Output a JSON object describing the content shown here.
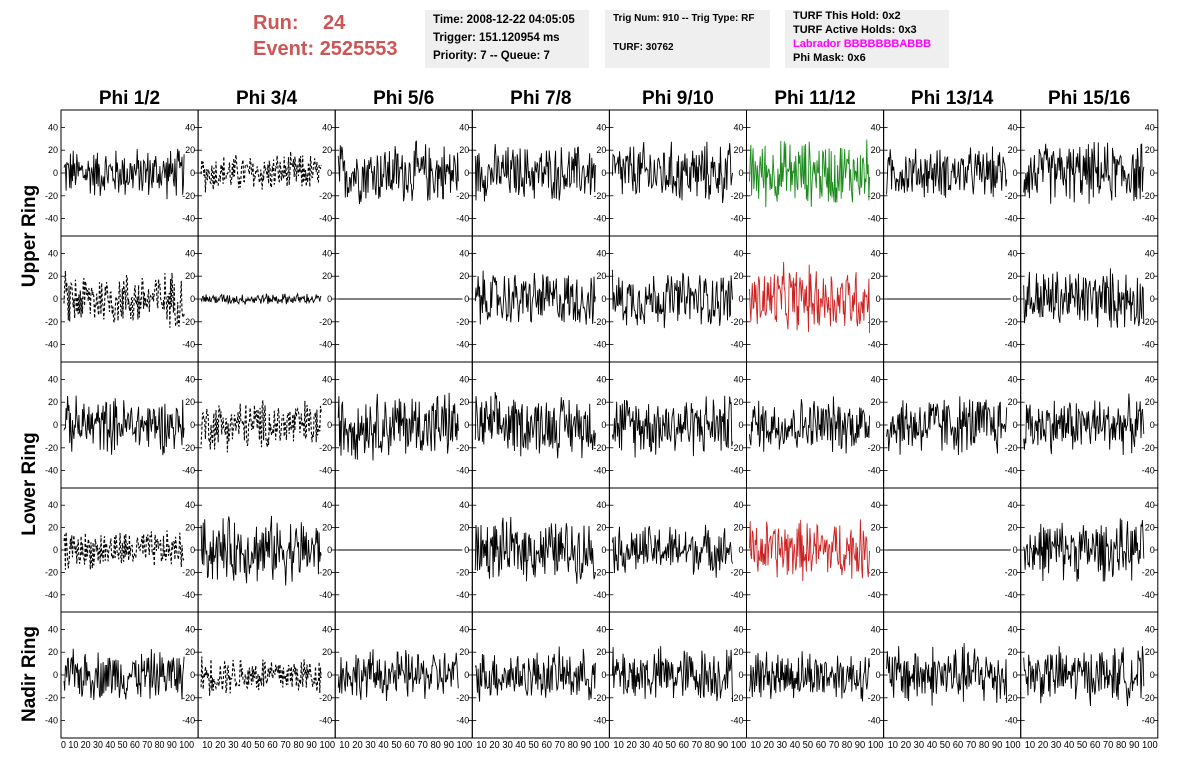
{
  "header": {
    "run_label": "Run:",
    "run_value": "24",
    "event_label": "Event:",
    "event_value": "2525553",
    "time": "Time: 2008-12-22 04:05:05",
    "trigger": "Trigger: 151.120954 ms",
    "priority": "Priority: 7 -- Queue: 7",
    "trig": "Trig Num: 910 -- Trig Type: RF",
    "turf": "TURF: 30762",
    "turf_hold": "TURF This Hold: 0x2",
    "turf_active": "TURF Active Holds: 0x3",
    "labrador": "Labrador BBBBBBBABBB",
    "phi_mask": "Phi Mask: 0x6"
  },
  "columns": [
    "Phi 1/2",
    "Phi 3/4",
    "Phi 5/6",
    "Phi 7/8",
    "Phi 9/10",
    "Phi 11/12",
    "Phi 13/14",
    "Phi 15/16"
  ],
  "row_labels": [
    "Upper Ring",
    "Lower Ring",
    "Nadir Ring"
  ],
  "y_ticks": [
    "40",
    "20",
    "0",
    "-20",
    "-40"
  ],
  "x_ticks_left": "0 10 20 30 40 50 60 70 80 90 100",
  "x_ticks": "10 20 30 40 50 60 70 80 90 100",
  "colors": {
    "run": "#cc5555",
    "labrador": "#ff00ff",
    "green": "#1a8a1a",
    "red": "#cc2222",
    "trace": "#000000"
  },
  "chart_data": {
    "type": "line",
    "title": "",
    "xlabel": "",
    "ylabel": "",
    "xlim": [
      0,
      100
    ],
    "ylim": [
      -50,
      50
    ],
    "panels": [
      [
        "solid",
        "dashed",
        "solid",
        "solid",
        "solid",
        "green",
        "solid",
        "solid"
      ],
      [
        "dashed",
        "small",
        "flat",
        "solid",
        "solid",
        "red",
        "flat",
        "solid"
      ],
      [
        "solid",
        "dashed",
        "solid",
        "solid",
        "solid",
        "solid",
        "solid",
        "solid"
      ],
      [
        "dashed",
        "solid",
        "flat",
        "solid",
        "solid",
        "red",
        "flat",
        "solid"
      ],
      [
        "solid",
        "dashed",
        "solid",
        "solid",
        "solid",
        "solid",
        "solid",
        "solid"
      ]
    ],
    "amplitudes": [
      [
        18,
        14,
        22,
        20,
        22,
        24,
        18,
        22
      ],
      [
        20,
        4,
        0,
        20,
        20,
        24,
        0,
        22
      ],
      [
        20,
        18,
        24,
        22,
        22,
        20,
        22,
        20
      ],
      [
        14,
        24,
        0,
        22,
        18,
        22,
        0,
        22
      ],
      [
        18,
        14,
        18,
        18,
        20,
        18,
        22,
        20
      ]
    ]
  }
}
